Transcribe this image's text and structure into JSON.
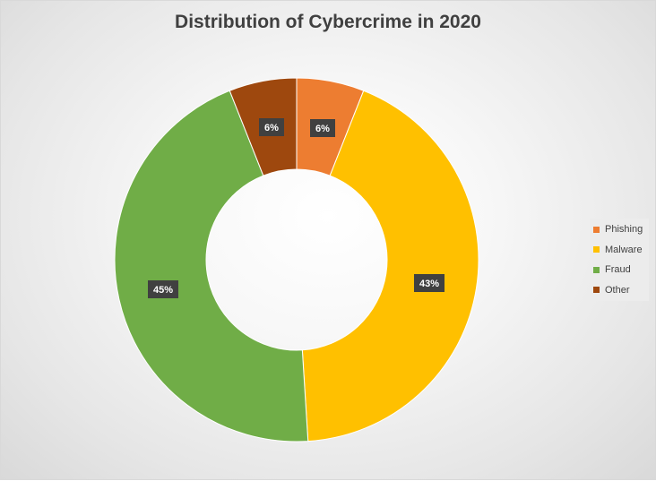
{
  "chart_data": {
    "type": "pie",
    "title": "Distribution of Cybercrime in 2020",
    "categories": [
      "Phishing",
      "Malware",
      "Fraud",
      "Other"
    ],
    "values": [
      6,
      43,
      45,
      6
    ],
    "labels": [
      "6%",
      "43%",
      "45%",
      "6%"
    ],
    "colors": [
      "#ED7D31",
      "#FFC000",
      "#70AD47",
      "#9E480E"
    ],
    "legend": "right"
  }
}
